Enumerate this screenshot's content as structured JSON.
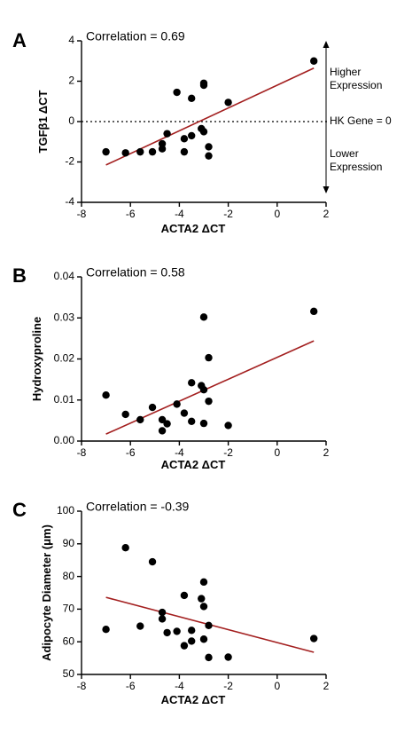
{
  "chart_data": [
    {
      "panel": "A",
      "type": "scatter",
      "annotation": "Correlation = 0.69",
      "xlabel": "ACTA2 ΔCT",
      "ylabel": "TGFβ1 ΔCT",
      "xlim": [
        -8,
        2
      ],
      "ylim": [
        -4,
        4
      ],
      "xticks": [
        "-8",
        "-6",
        "-4",
        "-2",
        "0",
        "2"
      ],
      "yticks": [
        "-4",
        "-2",
        "0",
        "2",
        "4"
      ],
      "points": [
        {
          "x": -7.0,
          "y": -1.5
        },
        {
          "x": -6.2,
          "y": -1.55
        },
        {
          "x": -5.6,
          "y": -1.5
        },
        {
          "x": -5.1,
          "y": -1.5
        },
        {
          "x": -4.7,
          "y": -1.35
        },
        {
          "x": -4.7,
          "y": -1.1
        },
        {
          "x": -4.5,
          "y": -0.6
        },
        {
          "x": -4.1,
          "y": 1.45
        },
        {
          "x": -3.8,
          "y": -1.5
        },
        {
          "x": -3.8,
          "y": -0.85
        },
        {
          "x": -3.5,
          "y": 1.15
        },
        {
          "x": -3.5,
          "y": -0.7
        },
        {
          "x": -3.1,
          "y": -0.35
        },
        {
          "x": -3.0,
          "y": 1.8
        },
        {
          "x": -3.0,
          "y": 1.9
        },
        {
          "x": -3.0,
          "y": -0.5
        },
        {
          "x": -2.8,
          "y": -1.25
        },
        {
          "x": -2.8,
          "y": -1.7
        },
        {
          "x": -2.0,
          "y": 0.95
        },
        {
          "x": 1.5,
          "y": 3.0
        }
      ],
      "trendline": {
        "x": [
          -7.0,
          1.5
        ],
        "y": [
          -2.15,
          2.65
        ],
        "color": "#a31f1f"
      },
      "reference_line": {
        "y": 0,
        "style": "dotted",
        "label": "HK Gene = 0"
      },
      "side_labels": {
        "upper": [
          "Higher",
          "Expression"
        ],
        "lower": [
          "Lower",
          "Expression"
        ]
      }
    },
    {
      "panel": "B",
      "type": "scatter",
      "annotation": "Correlation = 0.58",
      "xlabel": "ACTA2 ΔCT",
      "ylabel": "Hydroxyproline",
      "xlim": [
        -8,
        2
      ],
      "ylim": [
        0,
        0.04
      ],
      "xticks": [
        "-8",
        "-6",
        "-4",
        "-2",
        "0",
        "2"
      ],
      "yticks": [
        "0.00",
        "0.01",
        "0.02",
        "0.03",
        "0.04"
      ],
      "points": [
        {
          "x": -7.0,
          "y": 0.0112
        },
        {
          "x": -6.2,
          "y": 0.0065
        },
        {
          "x": -5.6,
          "y": 0.0052
        },
        {
          "x": -5.1,
          "y": 0.0082
        },
        {
          "x": -4.7,
          "y": 0.0052
        },
        {
          "x": -4.7,
          "y": 0.0025
        },
        {
          "x": -4.5,
          "y": 0.0042
        },
        {
          "x": -4.1,
          "y": 0.009
        },
        {
          "x": -3.8,
          "y": 0.0068
        },
        {
          "x": -3.5,
          "y": 0.0142
        },
        {
          "x": -3.5,
          "y": 0.0048
        },
        {
          "x": -3.1,
          "y": 0.0135
        },
        {
          "x": -3.0,
          "y": 0.0125
        },
        {
          "x": -3.0,
          "y": 0.0302
        },
        {
          "x": -3.0,
          "y": 0.0043
        },
        {
          "x": -2.8,
          "y": 0.0203
        },
        {
          "x": -2.8,
          "y": 0.0097
        },
        {
          "x": -2.0,
          "y": 0.0038
        },
        {
          "x": 1.5,
          "y": 0.0316
        }
      ],
      "trendline": {
        "x": [
          -7.0,
          1.5
        ],
        "y": [
          0.0017,
          0.0244
        ],
        "color": "#a31f1f"
      }
    },
    {
      "panel": "C",
      "type": "scatter",
      "annotation": "Correlation = -0.39",
      "xlabel": "ACTA2 ΔCT",
      "ylabel": "Adipocyte Diameter (μm)",
      "xlim": [
        -8,
        2
      ],
      "ylim": [
        50,
        100
      ],
      "xticks": [
        "-8",
        "-6",
        "-4",
        "-2",
        "0",
        "2"
      ],
      "yticks": [
        "50",
        "60",
        "70",
        "80",
        "90",
        "100"
      ],
      "points": [
        {
          "x": -7.0,
          "y": 63.8
        },
        {
          "x": -6.2,
          "y": 88.8
        },
        {
          "x": -5.6,
          "y": 64.8
        },
        {
          "x": -5.1,
          "y": 84.5
        },
        {
          "x": -4.7,
          "y": 69.0
        },
        {
          "x": -4.7,
          "y": 67.0
        },
        {
          "x": -4.5,
          "y": 62.8
        },
        {
          "x": -4.1,
          "y": 63.2
        },
        {
          "x": -3.8,
          "y": 74.2
        },
        {
          "x": -3.8,
          "y": 58.8
        },
        {
          "x": -3.5,
          "y": 63.5
        },
        {
          "x": -3.5,
          "y": 60.2
        },
        {
          "x": -3.1,
          "y": 73.2
        },
        {
          "x": -3.0,
          "y": 78.3
        },
        {
          "x": -3.0,
          "y": 70.8
        },
        {
          "x": -3.0,
          "y": 60.8
        },
        {
          "x": -2.8,
          "y": 65.0
        },
        {
          "x": -2.8,
          "y": 55.2
        },
        {
          "x": -2.0,
          "y": 55.3
        },
        {
          "x": 1.5,
          "y": 61.0
        }
      ],
      "trendline": {
        "x": [
          -7.0,
          1.5
        ],
        "y": [
          73.6,
          56.8
        ],
        "color": "#a31f1f"
      }
    }
  ]
}
